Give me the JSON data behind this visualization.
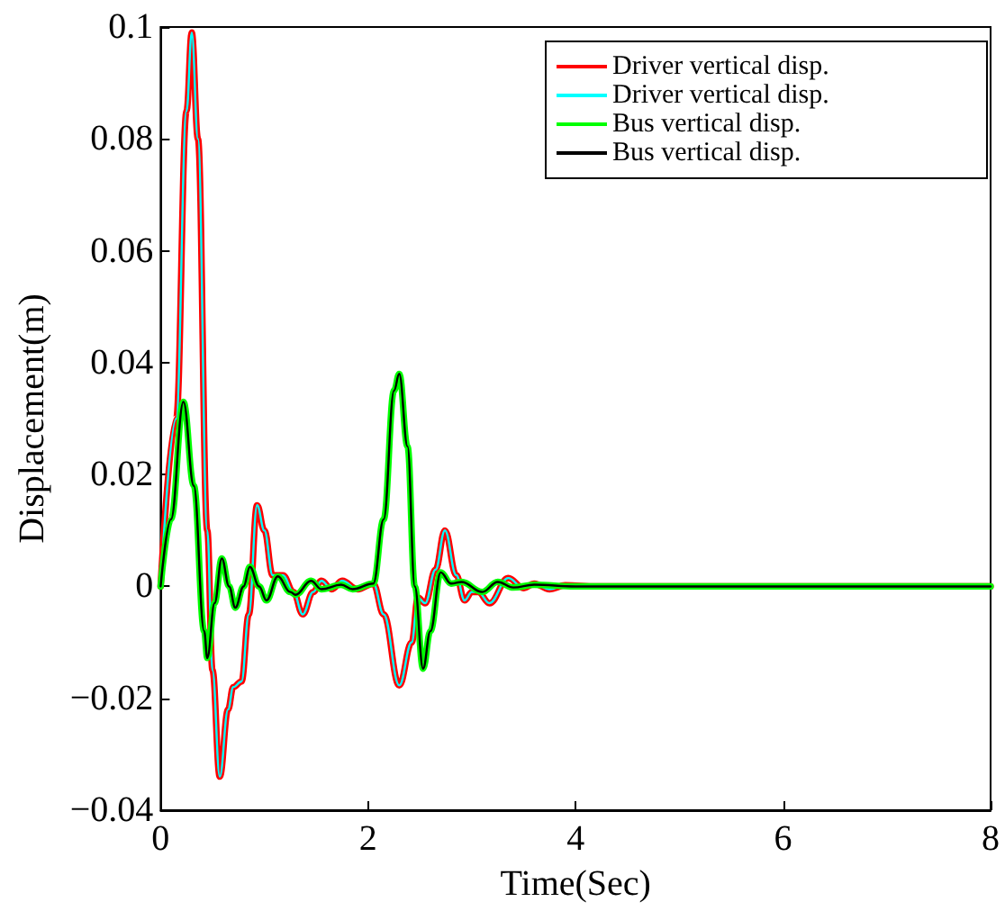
{
  "chart_data": {
    "type": "line",
    "xlabel": "Time(Sec)",
    "ylabel": "Displacement(m)",
    "xlim": [
      0,
      8
    ],
    "xticks": [
      0,
      2,
      4,
      6,
      8
    ],
    "ylim": [
      -0.04,
      0.1
    ],
    "yticks": [
      -0.04,
      -0.02,
      0,
      0.02,
      0.04,
      0.06,
      0.08,
      0.1
    ],
    "grid": false,
    "legend": "top right",
    "marker": "none",
    "line_style": "solid",
    "x": [
      0,
      0.15,
      0.25,
      0.3,
      0.36,
      0.45,
      0.5,
      0.57,
      0.65,
      0.7,
      0.78,
      0.85,
      0.93,
      1,
      1.08,
      1.18,
      1.28,
      1.37,
      1.47,
      1.55,
      1.65,
      1.75,
      1.9,
      2.05,
      2.15,
      2.3,
      2.42,
      2.48,
      2.55,
      2.65,
      2.74,
      2.85,
      2.93,
      3,
      3.06,
      3.17,
      3.35,
      3.5,
      3.6,
      3.75,
      3.9,
      4.2,
      8
    ],
    "series": [
      {
        "name": "Driver vertical disp.",
        "color": "#ff0000",
        "values": [
          0,
          0.03,
          0.085,
          0.099,
          0.08,
          0.01,
          -0.015,
          -0.034,
          -0.022,
          -0.018,
          -0.017,
          -0.005,
          0.0145,
          0.01,
          0.002,
          0.002,
          -0.001,
          -0.005,
          -0.001,
          0.001,
          -0.0005,
          0.001,
          -0.0005,
          0.0005,
          -0.005,
          -0.0177,
          -0.01,
          -0.002,
          -0.003,
          0.003,
          0.01,
          0.002,
          -0.0025,
          -0.001,
          -0.001,
          -0.003,
          0.0015,
          -0.0003,
          0.0005,
          -0.0005,
          0.0002,
          0,
          0
        ]
      },
      {
        "name": "Driver vertical disp.",
        "color": "#00ffff",
        "values": [
          0,
          0.03,
          0.085,
          0.099,
          0.08,
          0.01,
          -0.015,
          -0.034,
          -0.022,
          -0.018,
          -0.017,
          -0.005,
          0.0145,
          0.01,
          0.002,
          0.002,
          -0.001,
          -0.005,
          -0.001,
          0.001,
          -0.0005,
          0.001,
          -0.0005,
          0.0005,
          -0.005,
          -0.0177,
          -0.01,
          -0.002,
          -0.003,
          0.003,
          0.01,
          0.002,
          -0.0025,
          -0.001,
          -0.001,
          -0.003,
          0.0015,
          -0.0003,
          0.0005,
          -0.0005,
          0.0002,
          0,
          0
        ]
      },
      {
        "name": "Bus vertical disp.",
        "color": "#00ff00",
        "x": [
          0,
          0.1,
          0.22,
          0.32,
          0.42,
          0.45,
          0.52,
          0.59,
          0.66,
          0.72,
          0.8,
          0.86,
          0.95,
          1.02,
          1.13,
          1.25,
          1.3,
          1.45,
          1.55,
          1.74,
          1.85,
          2.05,
          2.15,
          2.25,
          2.3,
          2.38,
          2.45,
          2.53,
          2.6,
          2.7,
          2.8,
          2.9,
          3.1,
          3.25,
          3.4,
          3.6,
          4,
          8
        ],
        "values": [
          0,
          0.012,
          0.033,
          0.018,
          -0.008,
          -0.0128,
          -0.003,
          0.005,
          0,
          -0.0038,
          0,
          0.0035,
          0,
          -0.0025,
          0.0018,
          -0.001,
          -0.0015,
          0.001,
          -0.0005,
          0.0003,
          -0.0005,
          0.0005,
          0.012,
          0.035,
          0.038,
          0.025,
          0,
          -0.0147,
          -0.008,
          0.0025,
          0.0005,
          0.0008,
          -0.001,
          0.0008,
          -0.0002,
          0.0003,
          0,
          0
        ]
      },
      {
        "name": "Bus vertical disp.",
        "color": "#000000",
        "x": [
          0,
          0.1,
          0.22,
          0.32,
          0.42,
          0.45,
          0.52,
          0.59,
          0.66,
          0.72,
          0.8,
          0.86,
          0.95,
          1.02,
          1.13,
          1.25,
          1.3,
          1.45,
          1.55,
          1.74,
          1.85,
          2.05,
          2.15,
          2.25,
          2.3,
          2.38,
          2.45,
          2.53,
          2.6,
          2.7,
          2.8,
          2.9,
          3.1,
          3.25,
          3.4,
          3.6,
          4,
          8
        ],
        "values": [
          0,
          0.012,
          0.033,
          0.018,
          -0.008,
          -0.0128,
          -0.003,
          0.005,
          0,
          -0.0038,
          0,
          0.0035,
          0,
          -0.0025,
          0.0018,
          -0.001,
          -0.0015,
          0.001,
          -0.0005,
          0.0003,
          -0.0005,
          0.0005,
          0.012,
          0.035,
          0.038,
          0.025,
          0,
          -0.0147,
          -0.008,
          0.0025,
          0.0005,
          0.0008,
          -0.001,
          0.0008,
          -0.0002,
          0.0003,
          0,
          0
        ]
      }
    ]
  }
}
